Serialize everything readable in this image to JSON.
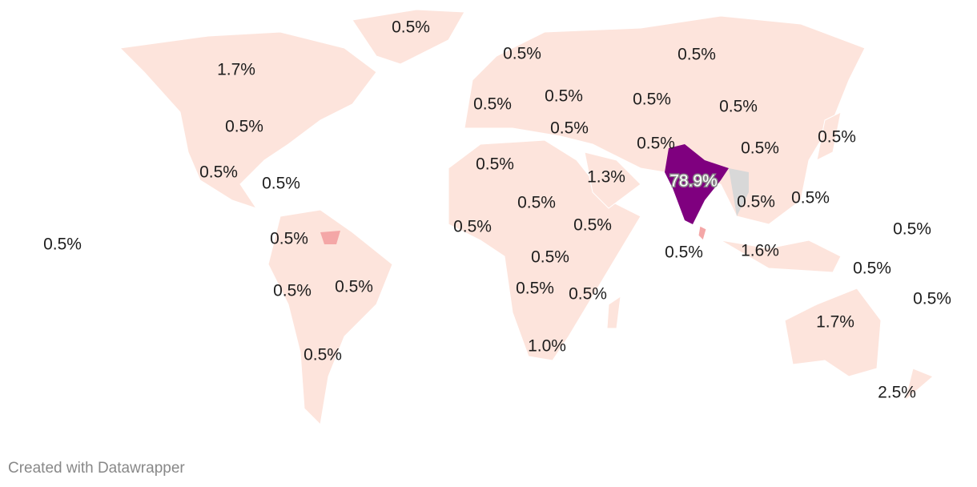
{
  "map": {
    "labels": [
      "0.5%",
      "1.7%",
      "0.5%",
      "0.5%",
      "0.5%",
      "0.5%",
      "0.5%",
      "0.5%",
      "0.5%",
      "0.5%",
      "0.5%",
      "0.5%",
      "0.5%",
      "0.5%",
      "1.3%",
      "78.9%",
      "0.5%",
      "0.5%",
      "0.5%",
      "0.5%",
      "0.5%",
      "0.5%",
      "0.5%",
      "0.5%",
      "0.5%",
      "0.5%",
      "0.5%",
      "1.6%",
      "0.5%",
      "0.5%",
      "0.5%",
      "0.5%",
      "0.5%",
      "0.5%",
      "0.5%",
      "1.7%",
      "1.0%",
      "0.5%",
      "2.5%"
    ]
  },
  "footer": {
    "credit": "Created with Datawrapper"
  }
}
